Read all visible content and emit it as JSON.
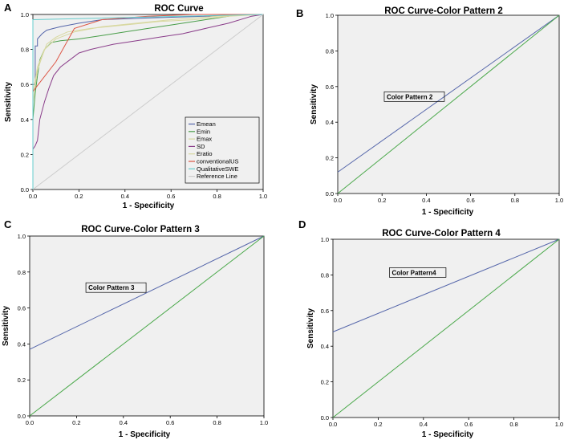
{
  "chart_data": [
    {
      "panel": "A",
      "type": "line",
      "title": "ROC Curve",
      "xlabel": "1 - Specificity",
      "ylabel": "Sensitivity",
      "xlim": [
        0,
        1
      ],
      "ylim": [
        0,
        1
      ],
      "xticks": [
        "0.0",
        "0.2",
        "0.4",
        "0.6",
        "0.8",
        "1.0"
      ],
      "yticks": [
        "0.0",
        "0.2",
        "0.4",
        "0.6",
        "0.8",
        "1.0"
      ],
      "legend_position": "bottom-right",
      "series": [
        {
          "name": "Emean",
          "color": "#5566aa",
          "x": [
            0,
            0,
            0.01,
            0.01,
            0.02,
            0.02,
            0.04,
            0.06,
            0.09,
            0.12,
            0.2,
            0.3,
            0.5,
            0.75,
            0.9,
            1
          ],
          "y": [
            0,
            0.6,
            0.6,
            0.82,
            0.82,
            0.86,
            0.89,
            0.91,
            0.92,
            0.93,
            0.95,
            0.97,
            0.98,
            0.99,
            1,
            1
          ]
        },
        {
          "name": "Emin",
          "color": "#4a9e4a",
          "x": [
            0,
            0,
            0.01,
            0.02,
            0.03,
            0.05,
            0.08,
            0.12,
            0.2,
            0.3,
            0.4,
            0.5,
            0.6,
            0.7,
            0.8,
            0.9,
            1
          ],
          "y": [
            0,
            0.4,
            0.55,
            0.65,
            0.74,
            0.8,
            0.84,
            0.85,
            0.86,
            0.88,
            0.9,
            0.92,
            0.94,
            0.96,
            0.98,
            1,
            1
          ]
        },
        {
          "name": "Emax",
          "color": "#d8d8a0",
          "x": [
            0,
            0,
            0.02,
            0.04,
            0.06,
            0.1,
            0.15,
            0.25,
            0.4,
            0.55,
            0.7,
            0.85,
            1
          ],
          "y": [
            0,
            0.5,
            0.68,
            0.76,
            0.83,
            0.87,
            0.9,
            0.92,
            0.94,
            0.96,
            0.97,
            0.99,
            1
          ]
        },
        {
          "name": "SD",
          "color": "#8a3d8a",
          "x": [
            0,
            0,
            0.01,
            0.02,
            0.03,
            0.04,
            0.05,
            0.07,
            0.09,
            0.12,
            0.16,
            0.2,
            0.25,
            0.35,
            0.45,
            0.55,
            0.65,
            0.75,
            0.85,
            0.95,
            1
          ],
          "y": [
            0,
            0.23,
            0.25,
            0.28,
            0.4,
            0.45,
            0.5,
            0.58,
            0.65,
            0.7,
            0.74,
            0.78,
            0.8,
            0.83,
            0.85,
            0.87,
            0.89,
            0.92,
            0.95,
            0.99,
            1
          ]
        },
        {
          "name": "Eratio",
          "color": "#d8d8a0",
          "x": [
            0,
            0,
            0.02,
            0.05,
            0.1,
            0.18,
            0.3,
            0.45,
            0.6,
            0.8,
            1
          ],
          "y": [
            0,
            0.55,
            0.7,
            0.8,
            0.86,
            0.9,
            0.93,
            0.95,
            0.97,
            0.99,
            1
          ]
        },
        {
          "name": "conventionalUS",
          "color": "#dd5544",
          "x": [
            0,
            0,
            0.1,
            0.18,
            0.3,
            0.5,
            0.7,
            0.9,
            1
          ],
          "y": [
            0,
            0.56,
            0.73,
            0.92,
            0.97,
            0.99,
            1,
            1,
            1
          ]
        },
        {
          "name": "QualitativeSWE",
          "color": "#66cccc",
          "x": [
            0,
            0,
            1
          ],
          "y": [
            0,
            0.97,
            1
          ]
        },
        {
          "name": "Reference Line",
          "color": "#cccccc",
          "x": [
            0,
            1
          ],
          "y": [
            0,
            1
          ]
        }
      ]
    },
    {
      "panel": "B",
      "type": "line",
      "title": "ROC Curve-Color Pattern 2",
      "xlabel": "1 - Specificity",
      "ylabel": "Sensitivity",
      "xlim": [
        0,
        1
      ],
      "ylim": [
        0,
        1
      ],
      "xticks": [
        "0.0",
        "0.2",
        "0.4",
        "0.6",
        "0.8",
        "1.0"
      ],
      "yticks": [
        "0.0",
        "0.2",
        "0.4",
        "0.6",
        "0.8",
        "1.0"
      ],
      "annotation": {
        "text": "Color Pattern 2",
        "x": 0.21,
        "y": 0.53
      },
      "series": [
        {
          "name": "Color Pattern 2",
          "color": "#5566aa",
          "x": [
            0,
            1
          ],
          "y": [
            0.12,
            1
          ]
        },
        {
          "name": "Reference Line",
          "color": "#4aa84a",
          "x": [
            0,
            1
          ],
          "y": [
            0,
            1
          ]
        }
      ]
    },
    {
      "panel": "C",
      "type": "line",
      "title": "ROC Curve-Color Pattern 3",
      "xlabel": "1 - Specificity",
      "ylabel": "Sensitivity",
      "xlim": [
        0,
        1
      ],
      "ylim": [
        0,
        1
      ],
      "xticks": [
        "0.0",
        "0.2",
        "0.4",
        "0.6",
        "0.8",
        "1.0"
      ],
      "yticks": [
        "0.0",
        "0.2",
        "0.4",
        "0.6",
        "0.8",
        "1.0"
      ],
      "annotation": {
        "text": "Color Pattern 3",
        "x": 0.24,
        "y": 0.7
      },
      "series": [
        {
          "name": "Color Pattern 3",
          "color": "#5566aa",
          "x": [
            0,
            1
          ],
          "y": [
            0.37,
            1
          ]
        },
        {
          "name": "Reference Line",
          "color": "#4aa84a",
          "x": [
            0,
            1
          ],
          "y": [
            0,
            1
          ]
        }
      ]
    },
    {
      "panel": "D",
      "type": "line",
      "title": "ROC Curve-Color Pattern 4",
      "xlabel": "1 - Specificity",
      "ylabel": "Sensitivity",
      "xlim": [
        0,
        1
      ],
      "ylim": [
        0,
        1
      ],
      "xticks": [
        "0.0",
        "0.2",
        "0.4",
        "0.6",
        "0.8",
        "1.0"
      ],
      "yticks": [
        "0.0",
        "0.2",
        "0.4",
        "0.6",
        "0.8",
        "1.0"
      ],
      "annotation": {
        "text": "Color Pattern4",
        "x": 0.25,
        "y": 0.8
      },
      "series": [
        {
          "name": "Color Pattern4",
          "color": "#5566aa",
          "x": [
            0,
            1
          ],
          "y": [
            0.48,
            1
          ]
        },
        {
          "name": "Reference Line",
          "color": "#4aa84a",
          "x": [
            0,
            1
          ],
          "y": [
            0,
            1
          ]
        }
      ]
    }
  ]
}
